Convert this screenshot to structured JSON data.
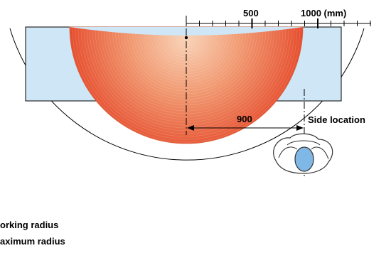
{
  "scale": {
    "tick_500": "500",
    "tick_1000": "1000 (mm)"
  },
  "dimension": {
    "value": "900"
  },
  "labels": {
    "side_location": "Side location",
    "working_radius": "orking radius",
    "maximum_radius": "aximum radius"
  },
  "colors": {
    "table_fill": "#cfe6f6",
    "working_area_outer": "#e94a2a",
    "working_area_inner": "#f7c7a8",
    "operator_fill": "#7fb8e6",
    "operator_outline": "#333333",
    "line": "#000000"
  }
}
